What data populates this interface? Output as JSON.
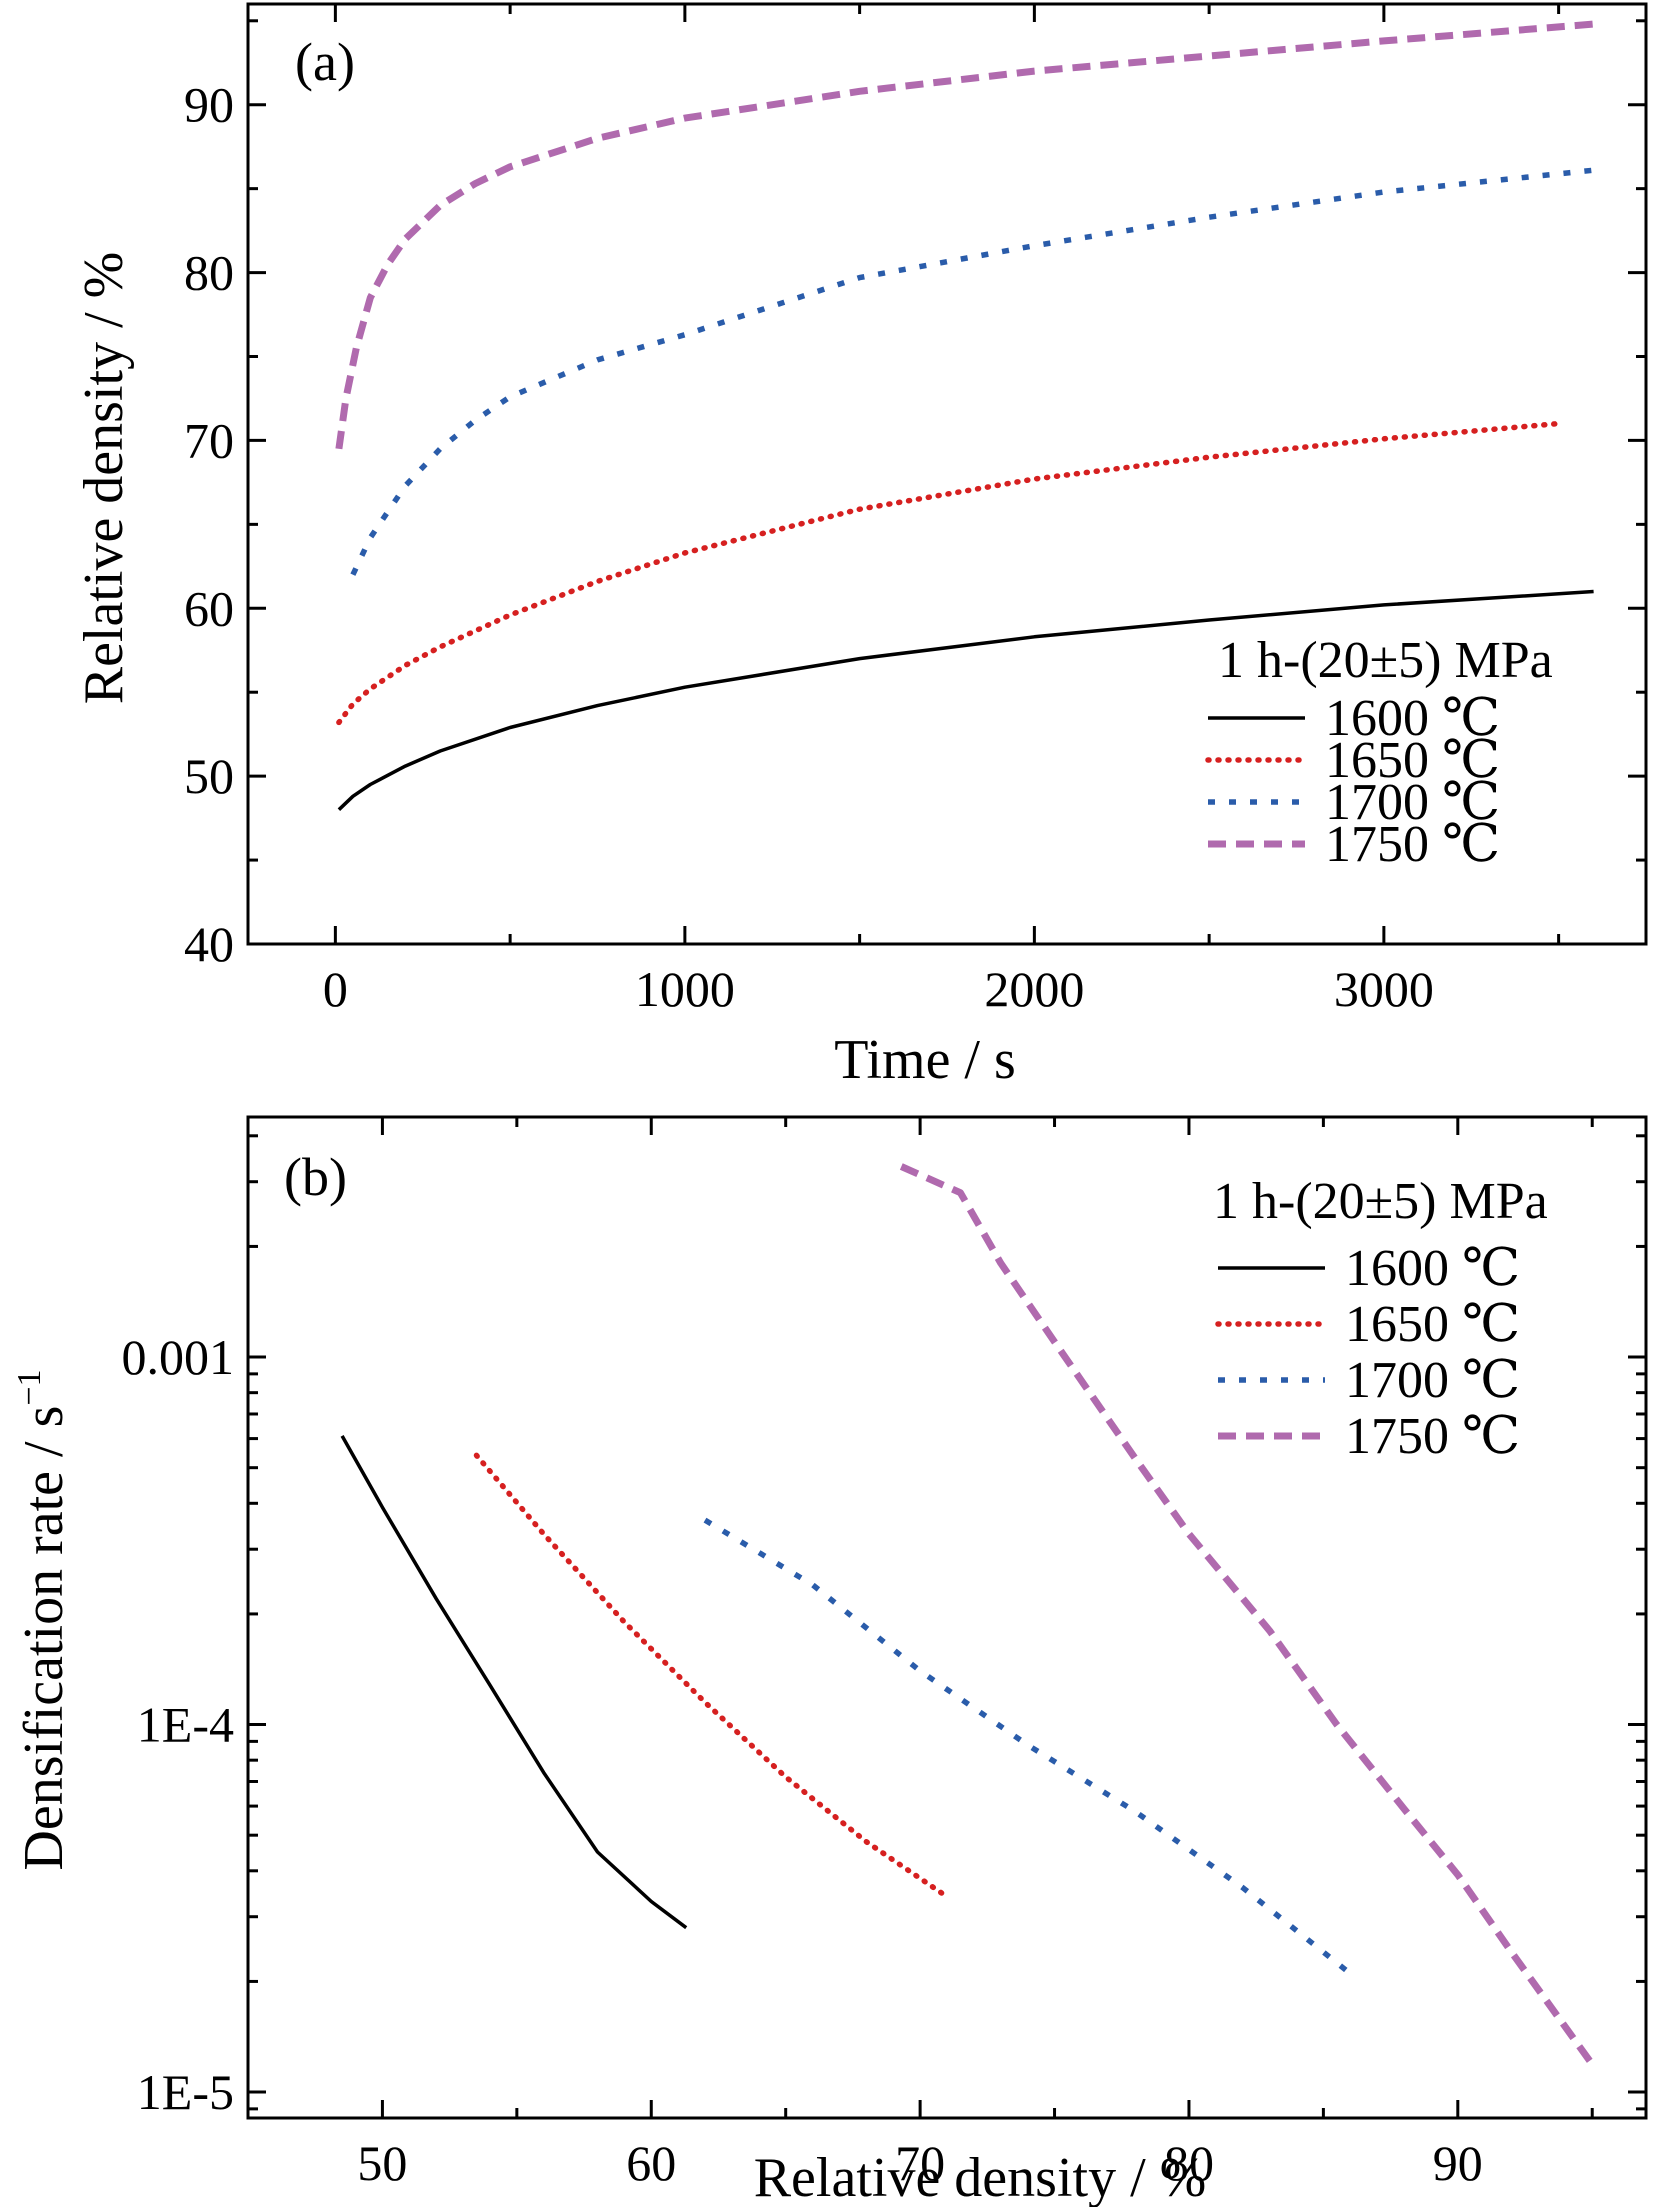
{
  "chart_data": [
    {
      "type": "line",
      "panel_label": "(a)",
      "xlabel": "Time / s",
      "ylabel": "Relative density / %",
      "xlim": [
        -250,
        3750
      ],
      "ylim": [
        40,
        96
      ],
      "xticks": [
        0,
        1000,
        2000,
        3000
      ],
      "xtick_labels": [
        "0",
        "1000",
        "2000",
        "3000"
      ],
      "yticks": [
        40,
        50,
        60,
        70,
        80,
        90
      ],
      "ytick_labels": [
        "40",
        "50",
        "60",
        "70",
        "80",
        "90"
      ],
      "grid": false,
      "legend_position": "bottom-right",
      "legend_title": "1 h-(20±5) MPa",
      "series": [
        {
          "name": "1600 ℃",
          "color": "#000000",
          "style": "solid",
          "x": [
            10,
            50,
            100,
            200,
            300,
            500,
            750,
            1000,
            1500,
            2000,
            2500,
            3000,
            3600
          ],
          "y": [
            48.0,
            48.8,
            49.5,
            50.6,
            51.5,
            52.9,
            54.2,
            55.3,
            57.0,
            58.3,
            59.3,
            60.2,
            61.0
          ]
        },
        {
          "name": "1650 ℃",
          "color": "#d62020",
          "style": "dotted",
          "x": [
            10,
            50,
            100,
            200,
            300,
            500,
            750,
            1000,
            1500,
            2000,
            2500,
            3000,
            3500
          ],
          "y": [
            53.2,
            54.3,
            55.2,
            56.6,
            57.7,
            59.6,
            61.6,
            63.3,
            65.9,
            67.7,
            69.0,
            70.1,
            71.0
          ]
        },
        {
          "name": "1700 ℃",
          "color": "#2a5caa",
          "style": "dashed-fine",
          "x": [
            50,
            100,
            200,
            300,
            400,
            500,
            750,
            1000,
            1500,
            2000,
            2500,
            3000,
            3600
          ],
          "y": [
            62.0,
            64.2,
            67.3,
            69.5,
            71.2,
            72.6,
            74.8,
            76.3,
            79.7,
            81.6,
            83.3,
            84.8,
            86.1
          ]
        },
        {
          "name": "1750 ℃",
          "color": "#b06aae",
          "style": "dashed",
          "x": [
            10,
            30,
            60,
            100,
            150,
            200,
            300,
            400,
            500,
            750,
            1000,
            1500,
            2000,
            2500,
            3000,
            3600
          ],
          "y": [
            69.5,
            72.5,
            75.5,
            78.5,
            80.5,
            82.0,
            84.0,
            85.3,
            86.3,
            88.0,
            89.2,
            90.8,
            92.0,
            92.9,
            93.8,
            94.8
          ]
        }
      ]
    },
    {
      "type": "line",
      "panel_label": "(b)",
      "xlabel": "Relative density / %",
      "ylabel": "Densification rate / s",
      "ylabel_superscript": "−1",
      "xlim": [
        45,
        97
      ],
      "ylim": [
        8.5e-06,
        0.0045
      ],
      "yscale": "log",
      "xticks": [
        50,
        60,
        70,
        80,
        90
      ],
      "xtick_labels": [
        "50",
        "60",
        "70",
        "80",
        "90"
      ],
      "yticks": [
        1e-05,
        0.0001,
        0.001
      ],
      "ytick_labels": [
        "1E-5",
        "1E-4",
        "0.001"
      ],
      "grid": false,
      "legend_position": "top-right",
      "legend_title": "1 h-(20±5) MPa",
      "series": [
        {
          "name": "1600 ℃",
          "color": "#000000",
          "style": "solid",
          "x": [
            48.5,
            50,
            52,
            54,
            56,
            58,
            60,
            61.3
          ],
          "y": [
            0.00061,
            0.00039,
            0.00022,
            0.000128,
            7.4e-05,
            4.5e-05,
            3.3e-05,
            2.8e-05
          ]
        },
        {
          "name": "1650 ℃",
          "color": "#d62020",
          "style": "dotted",
          "x": [
            53.5,
            56,
            59,
            62,
            65,
            68,
            71
          ],
          "y": [
            0.00054,
            0.00033,
            0.00019,
            0.000115,
            7.2e-05,
            4.8e-05,
            3.4e-05
          ]
        },
        {
          "name": "1700 ℃",
          "color": "#2a5caa",
          "style": "dashed-fine",
          "x": [
            62,
            66,
            70,
            74,
            78,
            82,
            86
          ],
          "y": [
            0.00036,
            0.00024,
            0.00014,
            8.8e-05,
            5.8e-05,
            3.6e-05,
            2.1e-05
          ]
        },
        {
          "name": "1750 ℃",
          "color": "#b06aae",
          "style": "dashed",
          "x": [
            69.3,
            71.5,
            73,
            75,
            78,
            80,
            83,
            85.5,
            88,
            90,
            92,
            95
          ],
          "y": [
            0.0033,
            0.0028,
            0.0018,
            0.0011,
            0.00053,
            0.00033,
            0.00018,
            0.0001,
            5.9e-05,
            3.9e-05,
            2.4e-05,
            1.19e-05
          ]
        }
      ]
    }
  ]
}
